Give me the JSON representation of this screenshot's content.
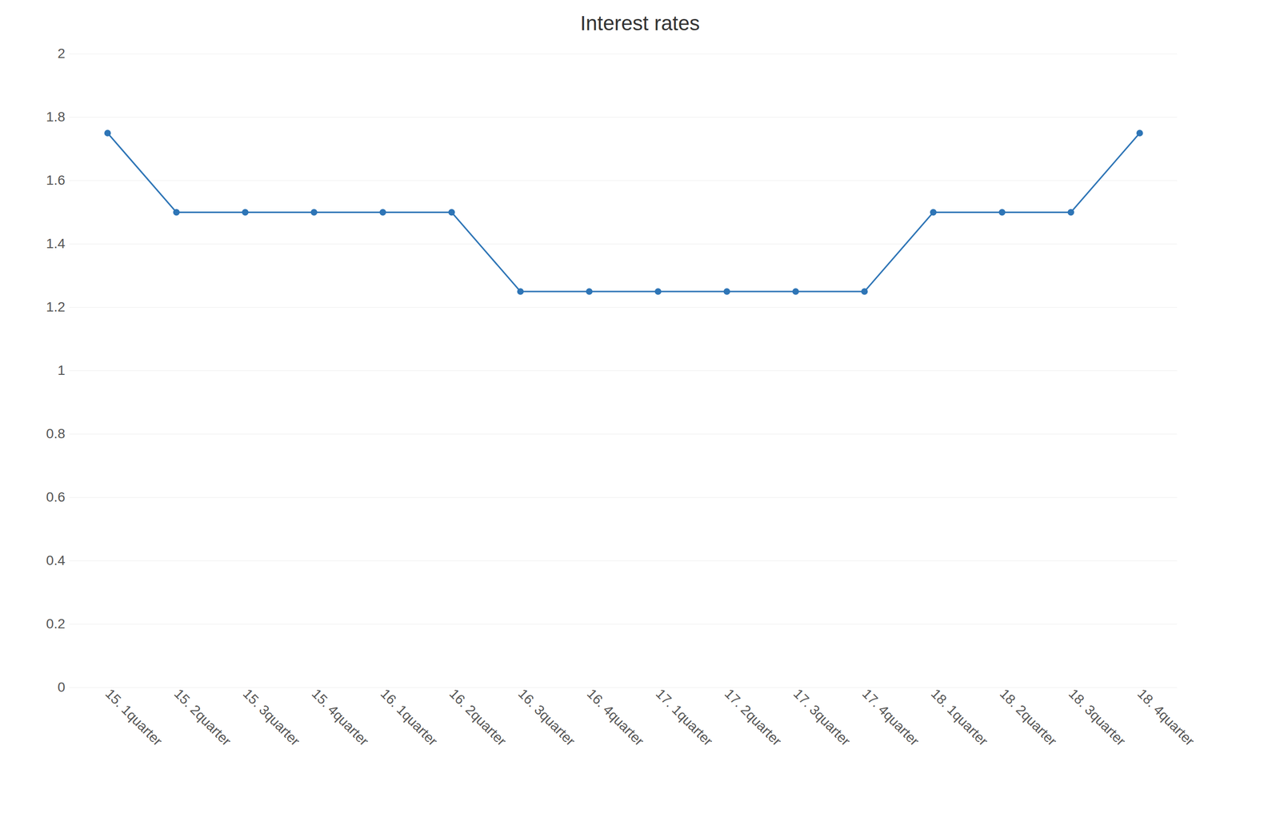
{
  "chart_data": {
    "type": "line",
    "title": "Interest rates",
    "categories": [
      "15. 1quarter",
      "15. 2quarter",
      "15. 3quarter",
      "15. 4quarter",
      "16. 1quarter",
      "16. 2quarter",
      "16. 3quarter",
      "16. 4quarter",
      "17. 1quarter",
      "17. 2quarter",
      "17. 3quarter",
      "17. 4quarter",
      "18. 1quarter",
      "18. 2quarter",
      "18. 3quarter",
      "18. 4quarter"
    ],
    "values": [
      1.75,
      1.5,
      1.5,
      1.5,
      1.5,
      1.5,
      1.25,
      1.25,
      1.25,
      1.25,
      1.25,
      1.25,
      1.5,
      1.5,
      1.5,
      1.75
    ],
    "color": "#2E75B6",
    "marker": "circle",
    "ylim": [
      0,
      2
    ],
    "yticks": [
      0,
      0.2,
      0.4,
      0.6,
      0.8,
      1,
      1.2,
      1.4,
      1.6,
      1.8,
      2
    ],
    "grid": true
  }
}
